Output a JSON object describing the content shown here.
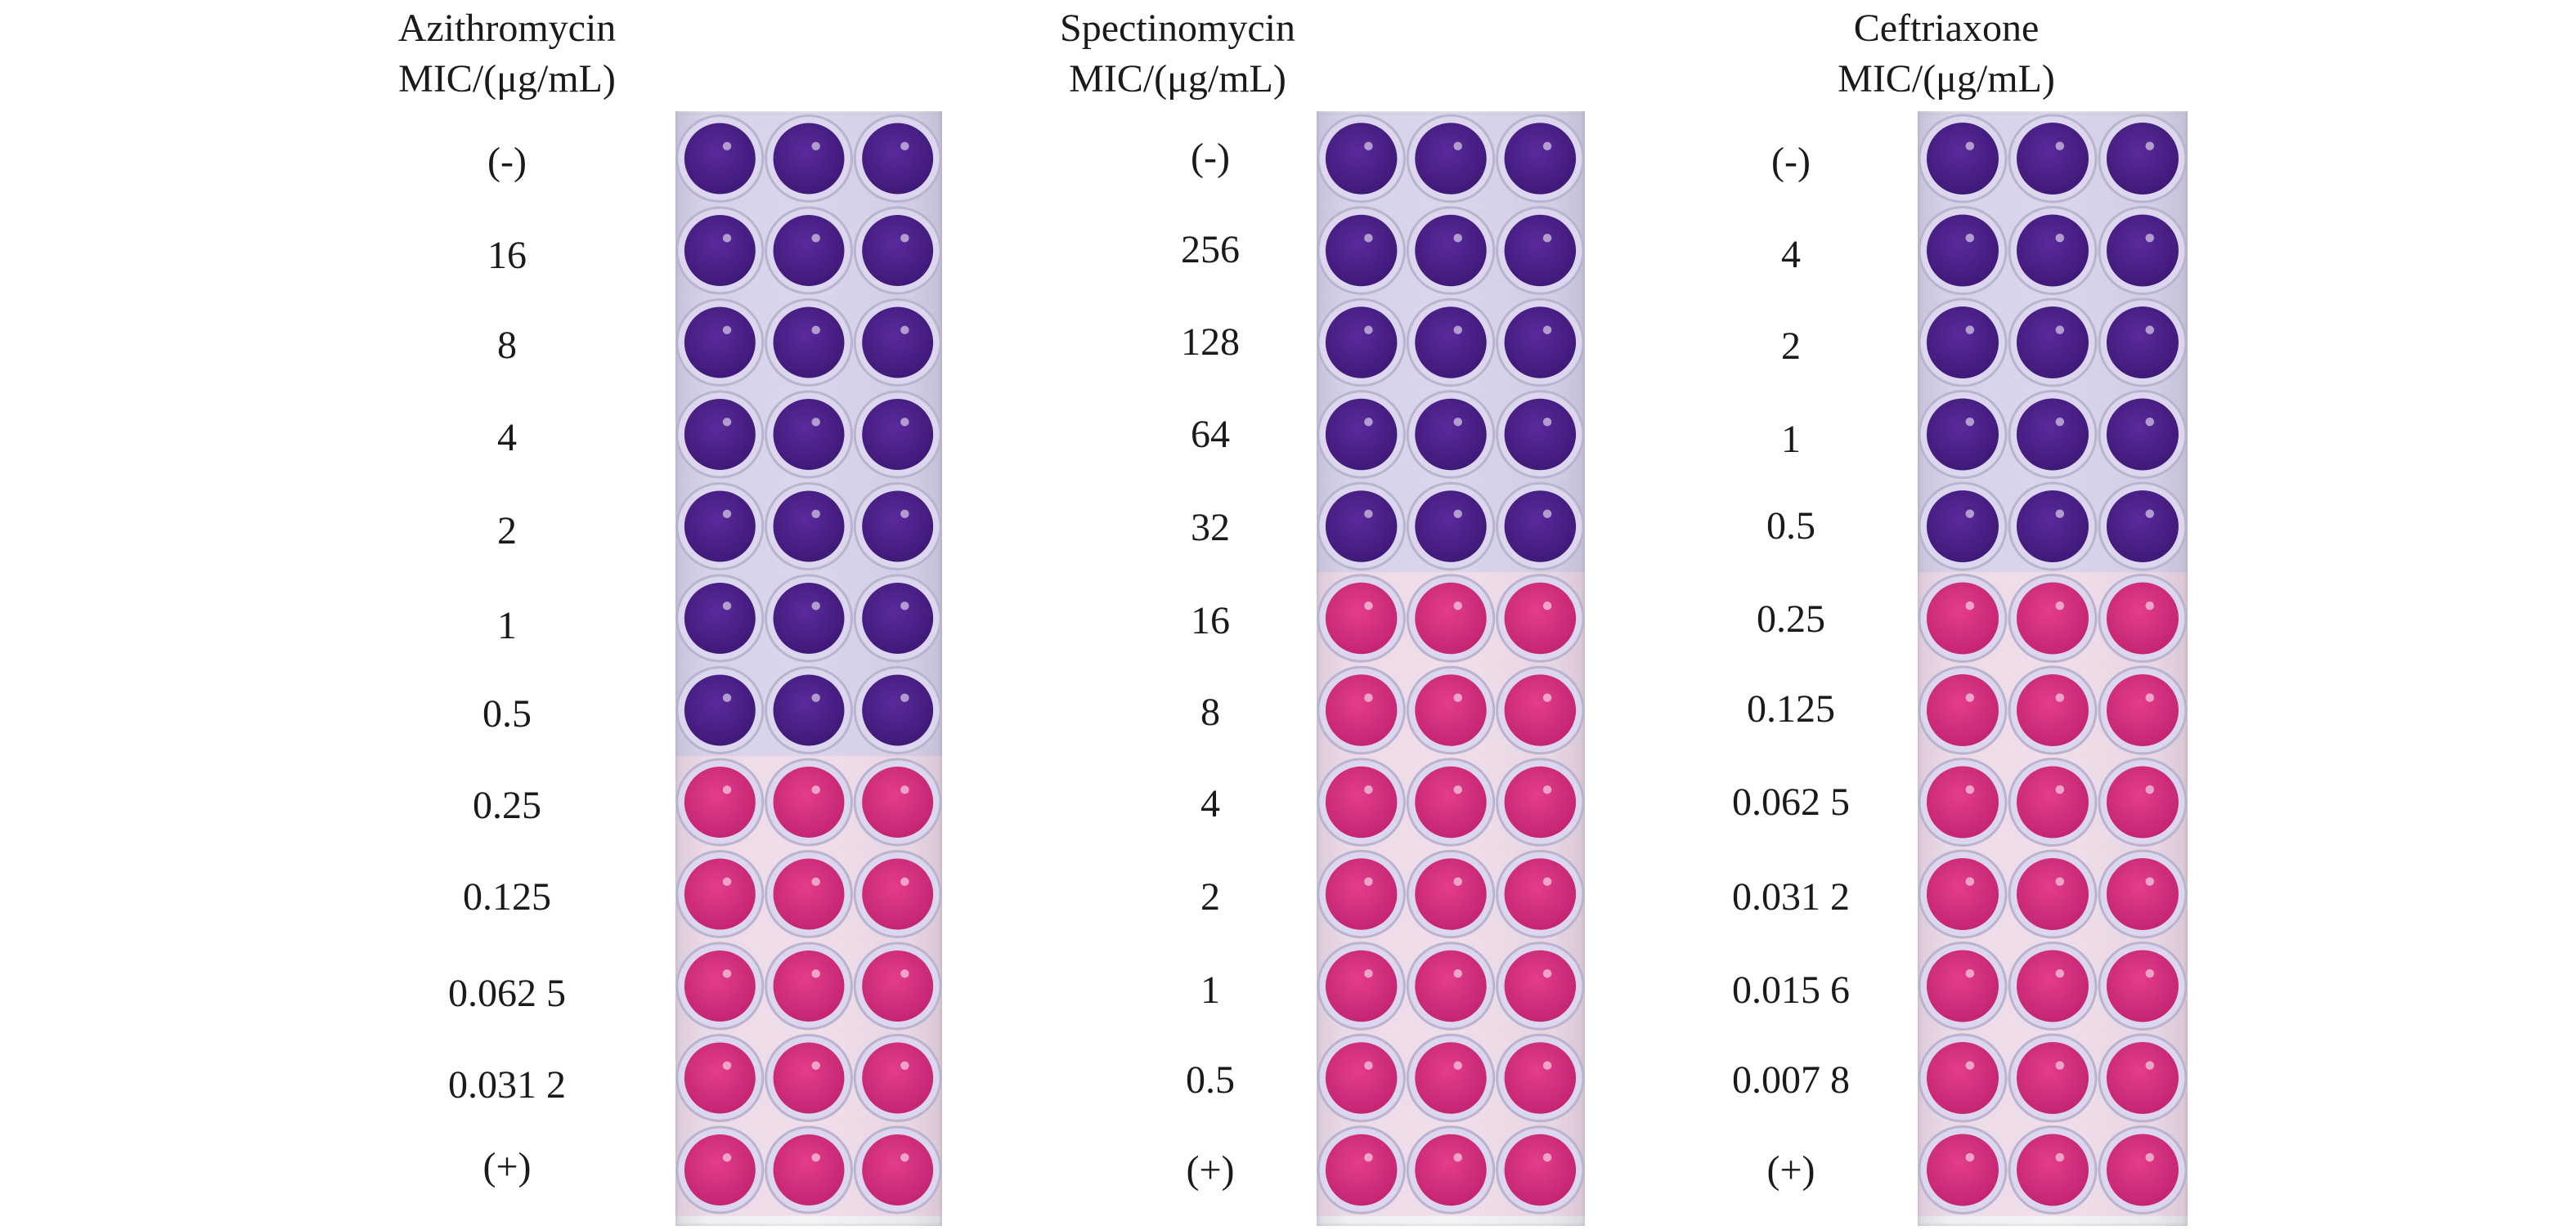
{
  "panels": [
    {
      "id": "azi",
      "title_line1": "Azithromycin",
      "title_line2": "MIC/(μg/mL)",
      "labels": [
        "(-)",
        "16",
        "8",
        "4",
        "2",
        "1",
        "0.5",
        "0.25",
        "0.125",
        "0.062 5",
        "0.031 2",
        "(+)"
      ],
      "purple_rows": 7
    },
    {
      "id": "spe",
      "title_line1": "Spectinomycin",
      "title_line2": "MIC/(μg/mL)",
      "labels": [
        "(-)",
        "256",
        "128",
        "64",
        "32",
        "16",
        "8",
        "4",
        "2",
        "1",
        "0.5",
        "(+)"
      ],
      "purple_rows": 5
    },
    {
      "id": "cef",
      "title_line1": "Ceftriaxone",
      "title_line2": "MIC/(μg/mL)",
      "labels": [
        "(-)",
        "4",
        "2",
        "1",
        "0.5",
        "0.25",
        "0.125",
        "0.062 5",
        "0.031 2",
        "0.015 6",
        "0.007 8",
        "(+)"
      ],
      "purple_rows": 5
    }
  ],
  "colors": {
    "purple_well": "#5a2a9c",
    "purple_dark": "#3f1a78",
    "pink_well": "#e33d8c",
    "pink_dark": "#c42572",
    "well_rim": "#dcd6ee",
    "plate_bg": "#eef0f3"
  }
}
